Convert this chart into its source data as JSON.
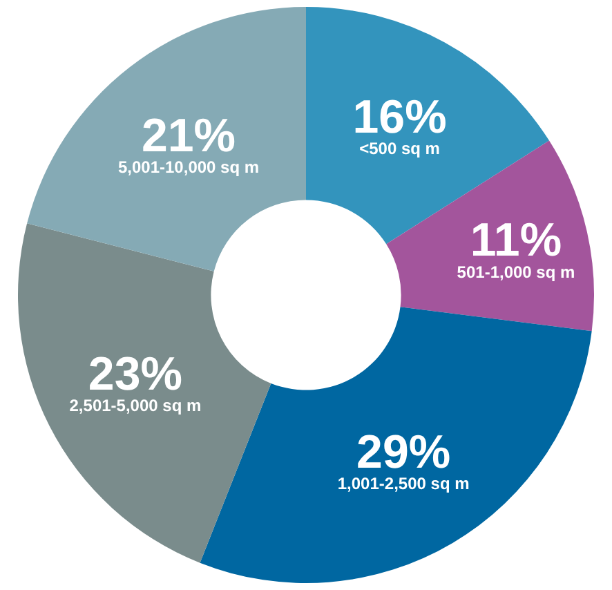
{
  "chart_data": {
    "type": "donut",
    "categories": [
      "<500 sq m",
      "501-1,000 sq m",
      "1,001-2,500 sq m",
      "2,501-5,000 sq m",
      "5,001-10,000 sq m"
    ],
    "values": [
      16,
      11,
      29,
      23,
      21
    ],
    "value_labels": [
      "16%",
      "11%",
      "29%",
      "23%",
      "21%"
    ],
    "colors": [
      "#3394bd",
      "#a3559c",
      "#0067a1",
      "#7a8c8c",
      "#85aab5"
    ],
    "legend": false
  }
}
